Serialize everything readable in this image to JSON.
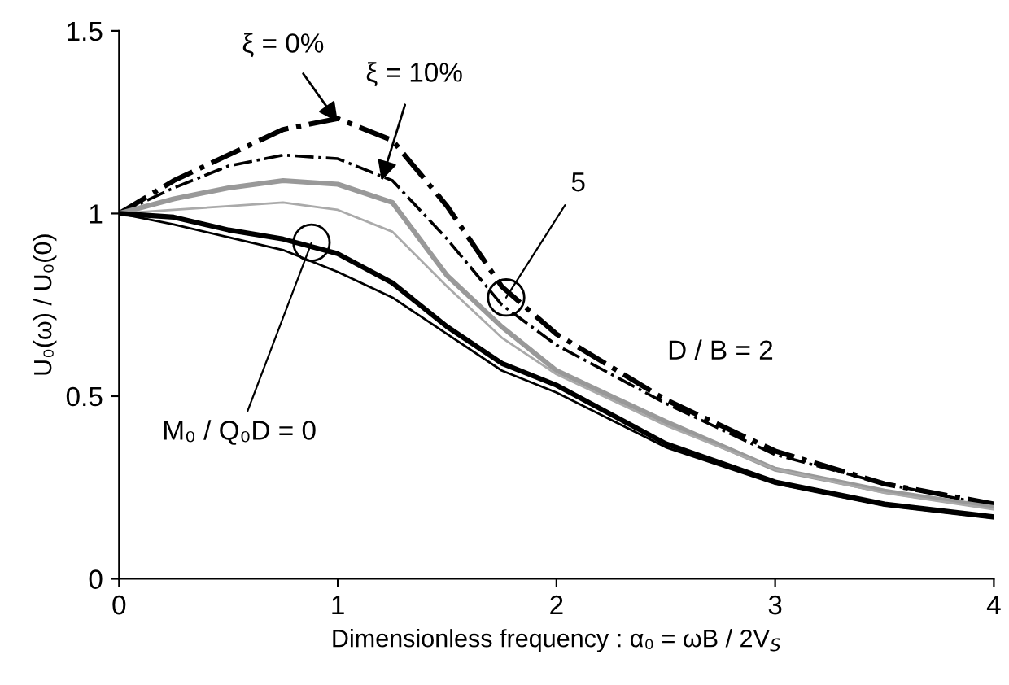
{
  "chart_data": {
    "type": "line",
    "xlabel": "Dimensionless frequency : α₀ = ωB / 2V$_{S}$",
    "ylabel": "U₀(ω) / U₀(0)",
    "x": [
      0,
      0.25,
      0.5,
      0.75,
      1,
      1.25,
      1.5,
      1.75,
      2,
      2.5,
      3,
      3.5,
      4
    ],
    "series": [
      {
        "color": "#000000",
        "line_style": "dashdot",
        "values": [
          1,
          1.09,
          1.16,
          1.23,
          1.26,
          1.2,
          1.02,
          0.8,
          0.67,
          0.49,
          0.35,
          0.26,
          0.205
        ]
      },
      {
        "color": "#000000",
        "line_style": "dashdot",
        "values": [
          1,
          1.07,
          1.13,
          1.16,
          1.15,
          1.09,
          0.93,
          0.75,
          0.64,
          0.48,
          0.34,
          0.26,
          0.2
        ]
      },
      {
        "color": "#999999",
        "line_style": "solid",
        "values": [
          1,
          1.04,
          1.07,
          1.09,
          1.08,
          1.03,
          0.83,
          0.69,
          0.57,
          0.43,
          0.3,
          0.24,
          0.195
        ]
      },
      {
        "color": "#aaaaaa",
        "line_style": "solid",
        "values": [
          1,
          1.01,
          1.02,
          1.03,
          1.01,
          0.95,
          0.8,
          0.66,
          0.56,
          0.42,
          0.3,
          0.235,
          0.19
        ]
      },
      {
        "color": "#000000",
        "line_style": "solid",
        "values": [
          1,
          0.99,
          0.955,
          0.93,
          0.89,
          0.81,
          0.69,
          0.59,
          0.53,
          0.37,
          0.265,
          0.205,
          0.17
        ]
      },
      {
        "color": "#000000",
        "line_style": "solid",
        "values": [
          1,
          0.97,
          0.935,
          0.9,
          0.84,
          0.77,
          0.67,
          0.57,
          0.51,
          0.36,
          0.26,
          0.2,
          0.165
        ]
      }
    ],
    "annotations": [
      {
        "text": "ξ = 0%",
        "x": 1.0,
        "y": 1.25
      },
      {
        "text": "ξ = 10%",
        "x": 1.2,
        "y": 1.09
      },
      {
        "text": "5",
        "x": 1.77,
        "y": 0.77
      },
      {
        "text": "M₀ / Q₀D = 0",
        "x": 0.88,
        "y": 0.92
      },
      "D / B = 2"
    ],
    "xlim": [
      0,
      4
    ],
    "xticks": [
      0,
      1,
      2,
      3,
      4
    ],
    "ylim": [
      0,
      1.5
    ],
    "yticks": [
      0,
      0.5,
      1,
      1.5
    ],
    "grid": false,
    "legend": false,
    "marker": "none"
  }
}
